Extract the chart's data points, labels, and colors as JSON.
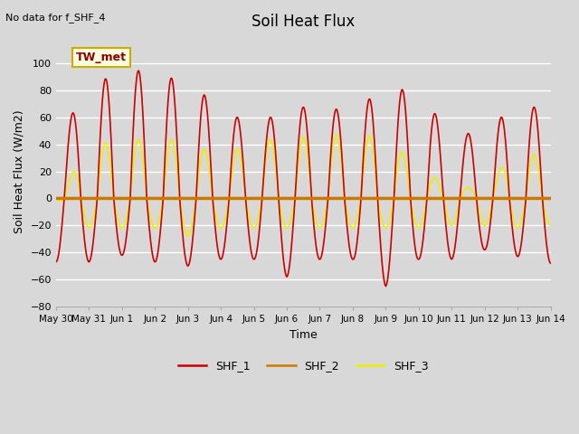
{
  "title": "Soil Heat Flux",
  "note": "No data for f_SHF_4",
  "ylabel": "Soil Heat Flux (W/m2)",
  "xlabel": "Time",
  "legend_label": "TW_met",
  "ylim": [
    -80,
    120
  ],
  "yticks": [
    -80,
    -60,
    -40,
    -20,
    0,
    20,
    40,
    60,
    80,
    100
  ],
  "fig_facecolor": "#d8d8d8",
  "axes_facecolor": "#d8d8d8",
  "shf1_color": "#cc0000",
  "shf2_color": "#cc7700",
  "shf3_color": "#eeee00",
  "shf1_label": "SHF_1",
  "shf2_label": "SHF_2",
  "shf3_label": "SHF_3",
  "n_days": 15,
  "num_points": 3000,
  "day_amplitudes_shf1": [
    45,
    81,
    96,
    93,
    85,
    68,
    52,
    68,
    67,
    65,
    82,
    79,
    46,
    50,
    70,
    65
  ],
  "day_min_shf1": [
    -47,
    -47,
    -42,
    -47,
    -50,
    -45,
    -45,
    -58,
    -45,
    -45,
    -65,
    -45,
    -45,
    -38,
    -43,
    -48
  ],
  "day_amplitudes_shf3": [
    0,
    38,
    44,
    44,
    43,
    30,
    43,
    44,
    47,
    47,
    46,
    22,
    8,
    8,
    37,
    28
  ],
  "day_min_shf3": [
    0,
    -22,
    -22,
    -22,
    -28,
    -22,
    -22,
    -22,
    -22,
    -22,
    -22,
    -22,
    -20,
    -20,
    -22,
    -20
  ],
  "tick_labels": [
    "May 30",
    "May 31",
    "Jun 1",
    "Jun 2",
    "Jun 3",
    "Jun 4",
    "Jun 5",
    "Jun 6",
    "Jun 7",
    "Jun 8",
    "Jun 9",
    "Jun 10",
    "Jun 11",
    "Jun 12",
    "Jun 13",
    "Jun 14"
  ]
}
